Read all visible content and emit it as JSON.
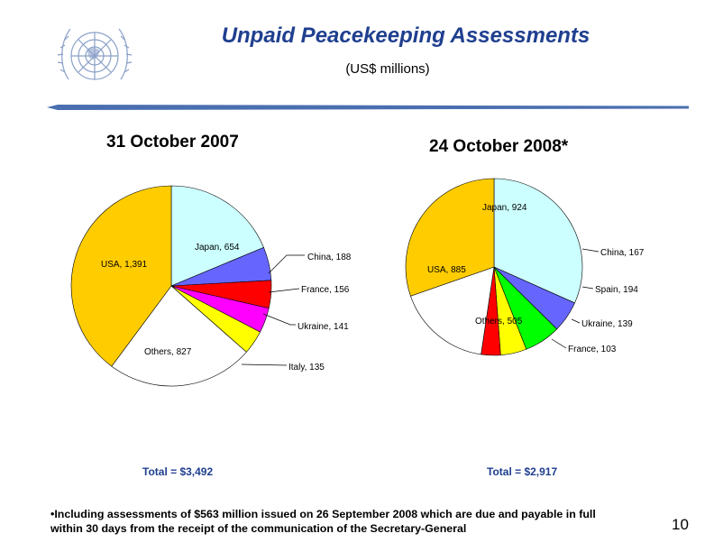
{
  "header": {
    "title": "Unpaid Peacekeeping Assessments",
    "subtitle": "(US$ millions)"
  },
  "chart_data": [
    {
      "type": "pie",
      "title": "31 October 2007",
      "total_label": "Total = $3,492",
      "slices": [
        {
          "name": "Japan",
          "value": 654,
          "label": "Japan, 654",
          "color": "#ccffff"
        },
        {
          "name": "China",
          "value": 188,
          "label": "China, 188",
          "color": "#6666ff"
        },
        {
          "name": "France",
          "value": 156,
          "label": "France, 156",
          "color": "#ff0000"
        },
        {
          "name": "Ukraine",
          "value": 141,
          "label": "Ukraine, 141",
          "color": "#ff00ff"
        },
        {
          "name": "Italy",
          "value": 135,
          "label": "Italy, 135",
          "color": "#ffff00"
        },
        {
          "name": "Others",
          "value": 827,
          "label": "Others, 827",
          "color": "#ffffff"
        },
        {
          "name": "USA",
          "value": 1391,
          "label": "USA, 1,391",
          "color": "#ffcc00"
        }
      ]
    },
    {
      "type": "pie",
      "title": "24 October 2008*",
      "total_label": "Total = $2,917",
      "slices": [
        {
          "name": "Japan",
          "value": 924,
          "label": "Japan, 924",
          "color": "#ccffff"
        },
        {
          "name": "China",
          "value": 167,
          "label": "China, 167",
          "color": "#6666ff"
        },
        {
          "name": "Spain",
          "value": 194,
          "label": "Spain, 194",
          "color": "#00ff00"
        },
        {
          "name": "Ukraine",
          "value": 139,
          "label": "Ukraine, 139",
          "color": "#ffff00"
        },
        {
          "name": "France",
          "value": 103,
          "label": "France, 103",
          "color": "#ff0000"
        },
        {
          "name": "Others",
          "value": 505,
          "label": "Others, 505",
          "color": "#ffffff"
        },
        {
          "name": "USA",
          "value": 885,
          "label": "USA, 885",
          "color": "#ffcc00"
        }
      ]
    }
  ],
  "footnote": {
    "line1": "•Including assessments of $563 million issued on 26 September 2008 which are due and payable in full",
    "line2": "within 30 days from the receipt of the communication of the Secretary-General"
  },
  "page_number": "10"
}
